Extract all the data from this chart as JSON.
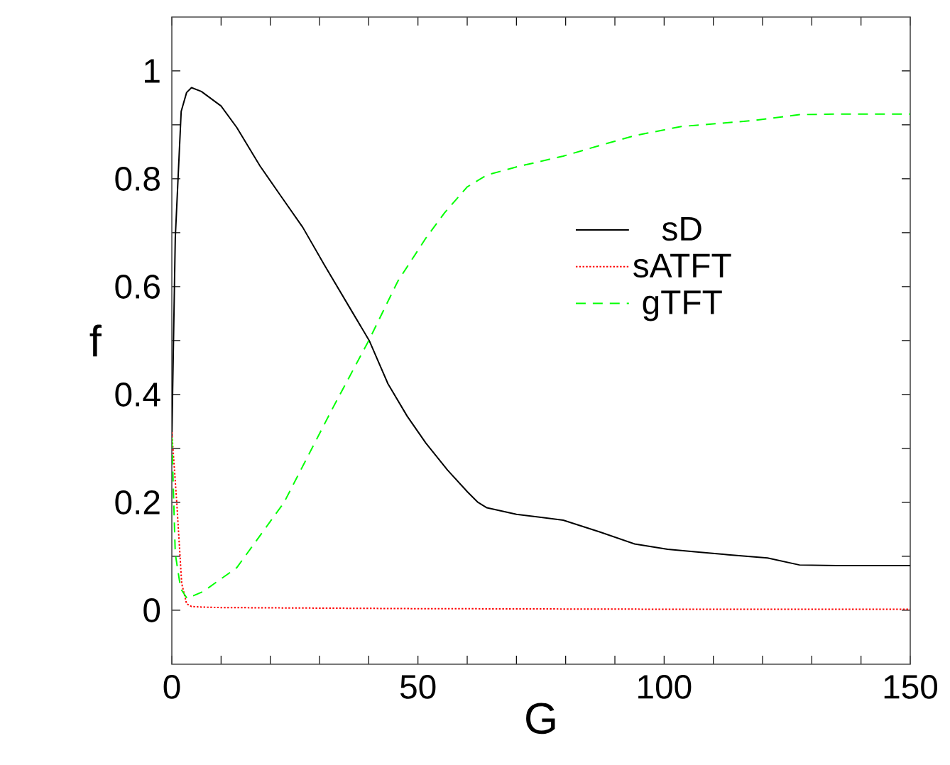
{
  "chart_data": {
    "type": "line",
    "xlabel": "G",
    "ylabel": "f",
    "xlim": [
      0,
      150
    ],
    "ylim": [
      -0.1,
      1.1
    ],
    "xticks": [
      0,
      {
        "value": 10,
        "label": null
      },
      {
        "value": 20,
        "label": null
      },
      {
        "value": 30,
        "label": null
      },
      {
        "value": 40,
        "label": null
      },
      50,
      {
        "value": 60,
        "label": null
      },
      {
        "value": 70,
        "label": null
      },
      {
        "value": 80,
        "label": null
      },
      {
        "value": 90,
        "label": null
      },
      100,
      {
        "value": 110,
        "label": null
      },
      {
        "value": 120,
        "label": null
      },
      {
        "value": 130,
        "label": null
      },
      {
        "value": 140,
        "label": null
      },
      150
    ],
    "yticks": [
      0,
      {
        "value": 0.1,
        "label": null
      },
      0.2,
      {
        "value": 0.3,
        "label": null
      },
      0.4,
      {
        "value": 0.5,
        "label": null
      },
      0.6,
      {
        "value": 0.7,
        "label": null
      },
      0.8,
      {
        "value": 0.9,
        "label": null
      },
      1
    ],
    "legend": "right",
    "grid": false,
    "marker": "none",
    "series": [
      {
        "name": "sD",
        "color": "#000000",
        "line_style": "solid",
        "x": [
          0,
          0.7,
          1.9,
          3,
          4,
          6,
          10,
          13.2,
          17.9,
          22,
          26.6,
          31,
          36.2,
          40.1,
          43.9,
          47.8,
          51.6,
          56,
          60,
          62.2,
          64,
          70,
          79.5,
          87,
          94,
          100.7,
          107,
          113,
          121,
          127.5,
          135,
          150
        ],
        "values": [
          0.32,
          0.69,
          0.925,
          0.96,
          0.969,
          0.962,
          0.935,
          0.895,
          0.824,
          0.77,
          0.71,
          0.64,
          0.56,
          0.5,
          0.42,
          0.36,
          0.31,
          0.26,
          0.22,
          0.2,
          0.19,
          0.178,
          0.167,
          0.145,
          0.123,
          0.113,
          0.108,
          0.103,
          0.097,
          0.084,
          0.083,
          0.083
        ]
      },
      {
        "name": "sATFT",
        "color": "#ff0000",
        "line_style": "dotted",
        "x": [
          0,
          1,
          2,
          3,
          4,
          6,
          10,
          30,
          50,
          100,
          150
        ],
        "values": [
          0.33,
          0.2,
          0.05,
          0.012,
          0.007,
          0.006,
          0.005,
          0.004,
          0.003,
          0.002,
          0.002
        ]
      },
      {
        "name": "gTFT",
        "color": "#00ff00",
        "line_style": "dashed",
        "x": [
          0,
          0.7,
          1.8,
          3.1,
          6.4,
          13.2,
          22.8,
          32.4,
          40,
          45.9,
          51.6,
          55.4,
          60,
          64,
          70,
          79.5,
          87,
          94,
          103.5,
          118,
          127.5,
          135,
          150
        ],
        "values": [
          0.32,
          0.105,
          0.04,
          0.022,
          0.035,
          0.079,
          0.2,
          0.37,
          0.5,
          0.61,
          0.69,
          0.737,
          0.785,
          0.807,
          0.822,
          0.842,
          0.862,
          0.88,
          0.897,
          0.908,
          0.919,
          0.92,
          0.92
        ]
      }
    ]
  }
}
